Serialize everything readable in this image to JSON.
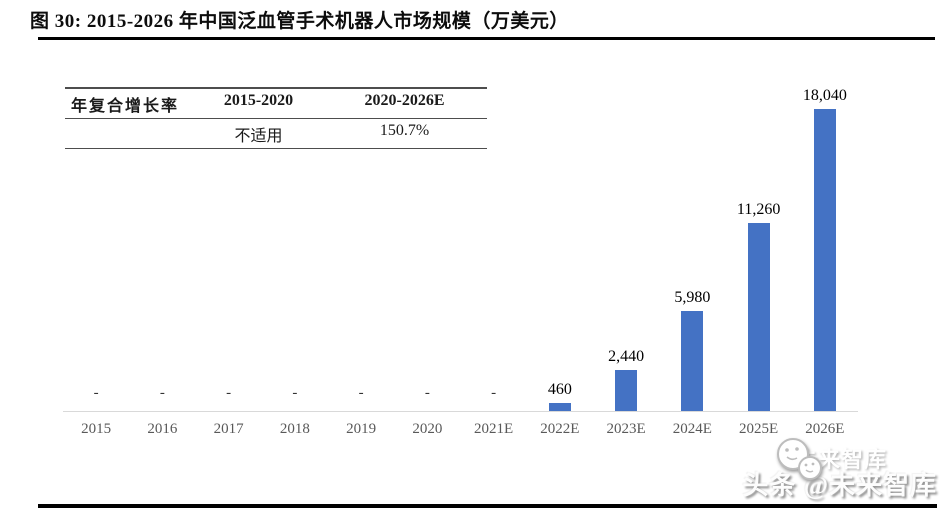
{
  "figure_header": {
    "title": "图 30: 2015-2026 年中国泛血管手术机器人市场规模（万美元）"
  },
  "cagr_table": {
    "headers": [
      "年复合增长率",
      "2015-2020",
      "2020-2026E"
    ],
    "values": [
      "",
      "不适用",
      "150.7%"
    ]
  },
  "chart_data": {
    "type": "bar",
    "title": "2015-2026 年中国泛血管手术机器人市场规模（万美元）",
    "unit": "万美元",
    "categories": [
      "2015",
      "2016",
      "2017",
      "2018",
      "2019",
      "2020",
      "2021E",
      "2022E",
      "2023E",
      "2024E",
      "2025E",
      "2026E"
    ],
    "values": [
      null,
      null,
      null,
      null,
      null,
      null,
      null,
      460,
      2440,
      5980,
      11260,
      18040
    ],
    "value_labels": [
      "-",
      "-",
      "-",
      "-",
      "-",
      "-",
      "-",
      "460",
      "2,440",
      "5,980",
      "11,260",
      "18,040"
    ],
    "ylim": [
      0,
      18040
    ],
    "bar_color": "#4472C4",
    "axis_line_color": "#D9D9D9",
    "grid": false,
    "legend_position": "none"
  },
  "watermark": {
    "text": "头条 @未来智库",
    "ghost_text": "未来智库",
    "logo": "toutiao-smiley-faces-logo"
  },
  "colors": {
    "title_text": "#0d0d0d",
    "header_rule": "#000000",
    "axis_label": "#595959"
  }
}
